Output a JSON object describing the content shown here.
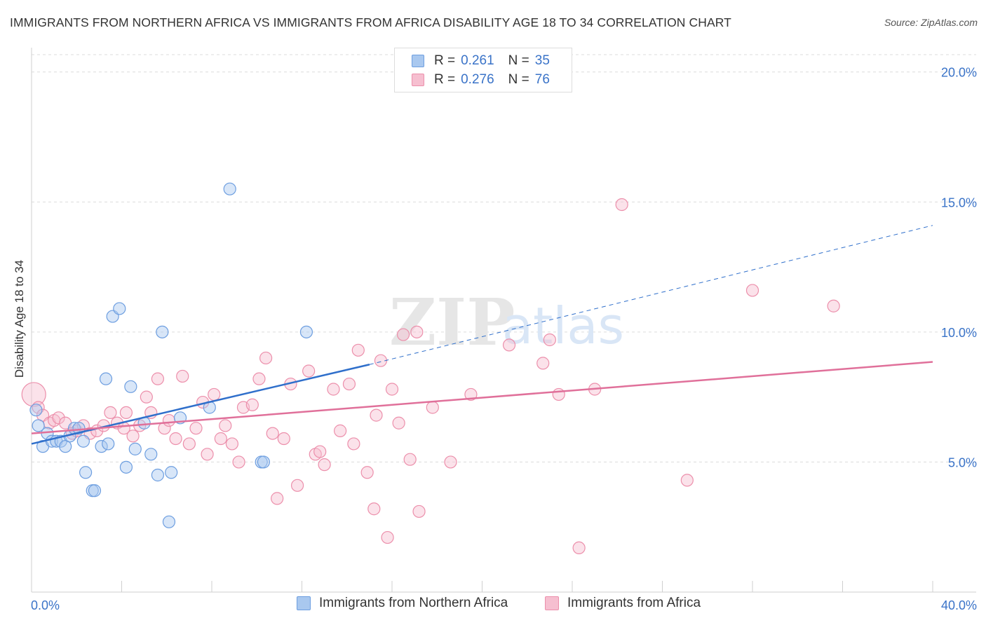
{
  "title": "IMMIGRANTS FROM NORTHERN AFRICA VS IMMIGRANTS FROM AFRICA DISABILITY AGE 18 TO 34 CORRELATION CHART",
  "source": "Source: ZipAtlas.com",
  "watermark": {
    "zip": "ZIP",
    "atlas": "atlas"
  },
  "colors": {
    "blue_fill": "#a9c8ef",
    "blue_stroke": "#6d9ee0",
    "blue_line": "#2f6fcb",
    "pink_fill": "#f6bfd0",
    "pink_stroke": "#ec8fab",
    "pink_line": "#e0709a",
    "tick_text": "#3a73c8",
    "grid": "#dcdcdc"
  },
  "legend_top": {
    "rows": [
      {
        "r_label": "R =",
        "r_value": "0.261",
        "n_label": "N =",
        "n_value": "35",
        "color": "blue"
      },
      {
        "r_label": "R =",
        "r_value": "0.276",
        "n_label": "N =",
        "n_value": "76",
        "color": "pink"
      }
    ]
  },
  "legend_bottom": [
    {
      "label": "Immigrants from Northern Africa",
      "color": "blue"
    },
    {
      "label": "Immigrants from Africa",
      "color": "pink"
    }
  ],
  "chart_data": {
    "type": "scatter",
    "title": "IMMIGRANTS FROM NORTHERN AFRICA VS IMMIGRANTS FROM AFRICA DISABILITY AGE 18 TO 34 CORRELATION CHART",
    "xlabel": "",
    "ylabel": "Disability Age 18 to 34",
    "xlim": [
      0,
      40
    ],
    "ylim": [
      0,
      20.8
    ],
    "x_tick_labels": [
      {
        "value": 0,
        "label": "0.0%"
      },
      {
        "value": 40,
        "label": "40.0%"
      }
    ],
    "y_tick_labels": [
      {
        "value": 5,
        "label": "5.0%"
      },
      {
        "value": 10,
        "label": "10.0%"
      },
      {
        "value": 15,
        "label": "15.0%"
      },
      {
        "value": 20,
        "label": "20.0%"
      }
    ],
    "grid": true,
    "legend_position": "top-center",
    "series": [
      {
        "name": "Immigrants from Northern Africa",
        "color": "blue",
        "points": [
          [
            0.2,
            7.0
          ],
          [
            0.3,
            6.4
          ],
          [
            0.5,
            5.6
          ],
          [
            0.7,
            6.1
          ],
          [
            0.9,
            5.8
          ],
          [
            1.1,
            5.8
          ],
          [
            1.3,
            5.8
          ],
          [
            1.5,
            5.6
          ],
          [
            1.7,
            6.0
          ],
          [
            1.9,
            6.3
          ],
          [
            2.1,
            6.3
          ],
          [
            2.3,
            5.8
          ],
          [
            2.4,
            4.6
          ],
          [
            2.7,
            3.9
          ],
          [
            2.8,
            3.9
          ],
          [
            3.1,
            5.6
          ],
          [
            3.3,
            8.2
          ],
          [
            3.4,
            5.7
          ],
          [
            3.6,
            10.6
          ],
          [
            3.9,
            10.9
          ],
          [
            4.2,
            4.8
          ],
          [
            4.4,
            7.9
          ],
          [
            4.6,
            5.5
          ],
          [
            5.0,
            6.5
          ],
          [
            5.3,
            5.3
          ],
          [
            5.6,
            4.5
          ],
          [
            5.8,
            10.0
          ],
          [
            6.2,
            4.6
          ],
          [
            6.1,
            2.7
          ],
          [
            6.6,
            6.7
          ],
          [
            7.9,
            7.1
          ],
          [
            8.8,
            15.5
          ],
          [
            10.2,
            5.0
          ],
          [
            10.3,
            5.0
          ],
          [
            12.2,
            10.0
          ]
        ],
        "trend": {
          "x": [
            0,
            15
          ],
          "y": [
            5.7,
            8.75
          ],
          "dashed_extension": {
            "x": [
              15,
              40
            ],
            "y": [
              8.75,
              14.1
            ]
          }
        }
      },
      {
        "name": "Immigrants from Africa",
        "color": "pink",
        "points": [
          [
            0.1,
            7.6
          ],
          [
            0.3,
            7.1
          ],
          [
            0.5,
            6.8
          ],
          [
            0.8,
            6.5
          ],
          [
            1.0,
            6.6
          ],
          [
            1.2,
            6.7
          ],
          [
            1.5,
            6.5
          ],
          [
            1.8,
            6.1
          ],
          [
            2.0,
            6.2
          ],
          [
            2.3,
            6.4
          ],
          [
            2.6,
            6.1
          ],
          [
            2.9,
            6.2
          ],
          [
            3.2,
            6.4
          ],
          [
            3.5,
            6.9
          ],
          [
            3.8,
            6.5
          ],
          [
            4.1,
            6.3
          ],
          [
            4.2,
            6.9
          ],
          [
            4.5,
            6.0
          ],
          [
            4.8,
            6.4
          ],
          [
            5.1,
            7.5
          ],
          [
            5.3,
            6.9
          ],
          [
            5.6,
            8.2
          ],
          [
            5.9,
            6.3
          ],
          [
            6.1,
            6.6
          ],
          [
            6.4,
            5.9
          ],
          [
            6.7,
            8.3
          ],
          [
            7.0,
            5.7
          ],
          [
            7.3,
            6.3
          ],
          [
            7.6,
            7.3
          ],
          [
            7.8,
            5.3
          ],
          [
            8.1,
            7.6
          ],
          [
            8.4,
            5.9
          ],
          [
            8.6,
            6.4
          ],
          [
            8.9,
            5.7
          ],
          [
            9.2,
            5.0
          ],
          [
            9.4,
            7.1
          ],
          [
            9.8,
            7.2
          ],
          [
            10.1,
            8.2
          ],
          [
            10.4,
            9.0
          ],
          [
            10.7,
            6.1
          ],
          [
            10.9,
            3.6
          ],
          [
            11.2,
            5.9
          ],
          [
            11.5,
            8.0
          ],
          [
            11.8,
            4.1
          ],
          [
            12.3,
            8.5
          ],
          [
            12.6,
            5.3
          ],
          [
            12.8,
            5.4
          ],
          [
            13.0,
            4.9
          ],
          [
            13.4,
            7.8
          ],
          [
            13.7,
            6.2
          ],
          [
            14.1,
            8.0
          ],
          [
            14.3,
            5.7
          ],
          [
            14.5,
            9.3
          ],
          [
            14.9,
            4.6
          ],
          [
            15.2,
            3.2
          ],
          [
            15.3,
            6.8
          ],
          [
            15.5,
            8.9
          ],
          [
            15.8,
            2.1
          ],
          [
            16.0,
            7.8
          ],
          [
            16.3,
            6.5
          ],
          [
            16.5,
            9.9
          ],
          [
            16.8,
            5.1
          ],
          [
            17.1,
            10.0
          ],
          [
            17.2,
            3.1
          ],
          [
            17.8,
            7.1
          ],
          [
            18.6,
            5.0
          ],
          [
            19.5,
            7.6
          ],
          [
            21.2,
            9.5
          ],
          [
            22.7,
            8.8
          ],
          [
            23.0,
            9.7
          ],
          [
            23.4,
            7.6
          ],
          [
            24.3,
            1.7
          ],
          [
            25.0,
            7.8
          ],
          [
            26.2,
            14.9
          ],
          [
            29.1,
            4.3
          ],
          [
            32.0,
            11.6
          ],
          [
            35.6,
            11.0
          ]
        ],
        "trend": {
          "x": [
            0,
            40
          ],
          "y": [
            6.1,
            8.85
          ]
        }
      }
    ]
  }
}
